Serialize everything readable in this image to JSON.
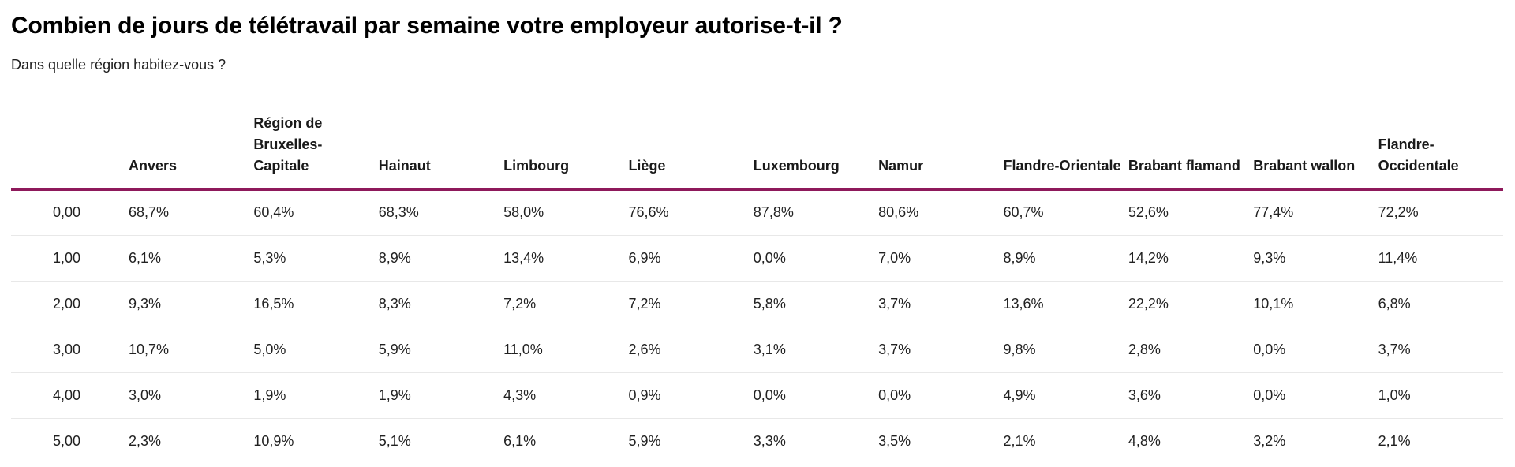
{
  "page": {
    "title": "Combien de jours de télétravail par semaine votre employeur autorise-t-il ?",
    "subtitle": "Dans quelle région habitez-vous ?"
  },
  "colors": {
    "header_rule": "#8E195B",
    "row_divider": "#E8E8E8",
    "text": "#212121",
    "background": "#FFFFFF"
  },
  "chart_data": {
    "type": "table",
    "title": "Combien de jours de télétravail par semaine votre employeur autorise-t-il ?",
    "subtitle": "Dans quelle région habitez-vous ?",
    "row_header_label": "",
    "columns": [
      "Anvers",
      "Région de Bruxelles-Capitale",
      "Hainaut",
      "Limbourg",
      "Liège",
      "Luxembourg",
      "Namur",
      "Flandre-Orientale",
      "Brabant flamand",
      "Brabant wallon",
      "Flandre-Occidentale"
    ],
    "rows": [
      {
        "label": "0,00",
        "values": [
          "68,7%",
          "60,4%",
          "68,3%",
          "58,0%",
          "76,6%",
          "87,8%",
          "80,6%",
          "60,7%",
          "52,6%",
          "77,4%",
          "72,2%"
        ]
      },
      {
        "label": "1,00",
        "values": [
          "6,1%",
          "5,3%",
          "8,9%",
          "13,4%",
          "6,9%",
          "0,0%",
          "7,0%",
          "8,9%",
          "14,2%",
          "9,3%",
          "11,4%"
        ]
      },
      {
        "label": "2,00",
        "values": [
          "9,3%",
          "16,5%",
          "8,3%",
          "7,2%",
          "7,2%",
          "5,8%",
          "3,7%",
          "13,6%",
          "22,2%",
          "10,1%",
          "6,8%"
        ]
      },
      {
        "label": "3,00",
        "values": [
          "10,7%",
          "5,0%",
          "5,9%",
          "11,0%",
          "2,6%",
          "3,1%",
          "3,7%",
          "9,8%",
          "2,8%",
          "0,0%",
          "3,7%"
        ]
      },
      {
        "label": "4,00",
        "values": [
          "3,0%",
          "1,9%",
          "1,9%",
          "4,3%",
          "0,9%",
          "0,0%",
          "0,0%",
          "4,9%",
          "3,6%",
          "0,0%",
          "1,0%"
        ]
      },
      {
        "label": "5,00",
        "values": [
          "2,3%",
          "10,9%",
          "5,1%",
          "6,1%",
          "5,9%",
          "3,3%",
          "3,5%",
          "2,1%",
          "4,8%",
          "3,2%",
          "2,1%"
        ]
      }
    ]
  }
}
